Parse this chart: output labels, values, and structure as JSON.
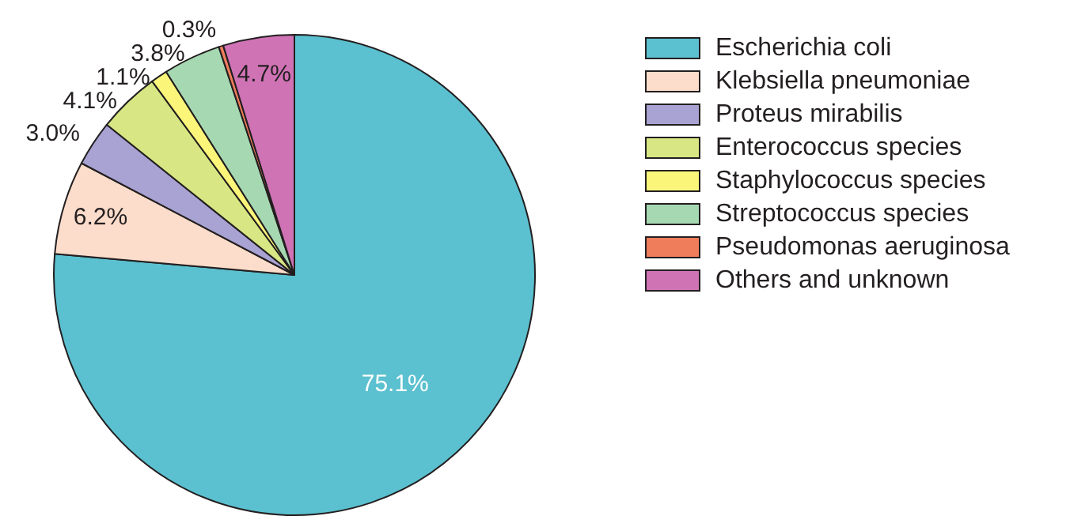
{
  "chart_data": {
    "type": "pie",
    "categories": [
      "Escherichia coli",
      "Klebsiella pneumoniae",
      "Proteus mirabilis",
      "Enterococcus species",
      "Staphylococcus species",
      "Streptococcus species",
      "Pseudomonas aeruginosa",
      "Others and unknown"
    ],
    "values": [
      75.1,
      6.2,
      3.0,
      4.1,
      1.1,
      3.8,
      0.3,
      4.7
    ],
    "colors": [
      "#5bc0cf",
      "#fcdcca",
      "#a9a3d3",
      "#d8e783",
      "#fbf67a",
      "#a6d8b2",
      "#ef7d5c",
      "#cf73b5"
    ],
    "value_labels": [
      "75.1%",
      "6.2%",
      "3.0%",
      "4.1%",
      "1.1%",
      "3.8%",
      "0.3%",
      "4.7%"
    ],
    "legend": "right"
  }
}
